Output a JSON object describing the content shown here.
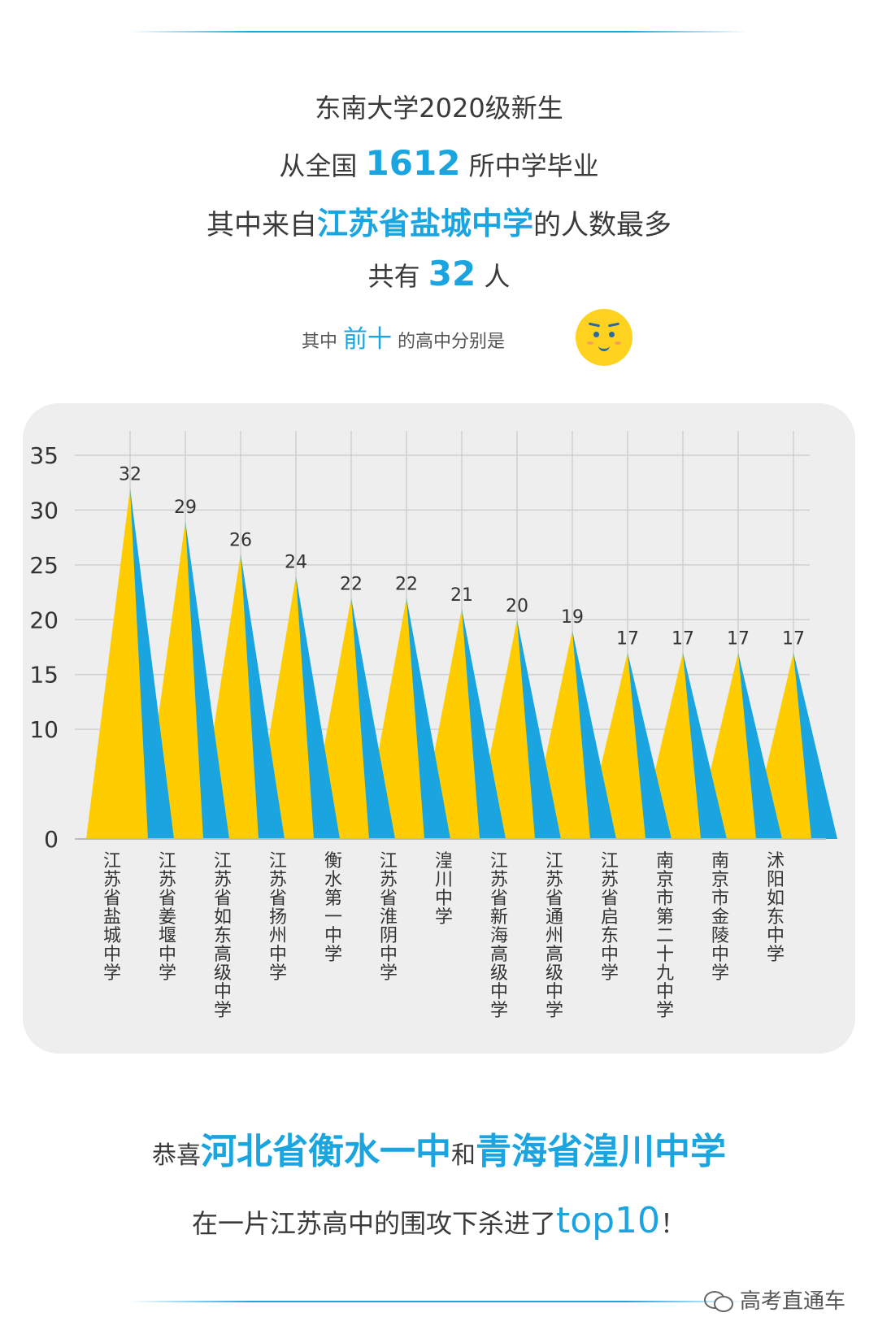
{
  "header": {
    "line1": "东南大学2020级新生",
    "line2_pre": "从全国 ",
    "line2_num": "1612",
    "line2_post": " 所中学毕业",
    "line3_pre": "其中来自",
    "line3_hl": "江苏省盐城中学",
    "line3_post": "的人数最多",
    "line4_pre": "共有 ",
    "line4_num": "32",
    "line4_post": " 人",
    "line5_pre": "其中 ",
    "line5_hl": "前十",
    "line5_post": " 的高中分别是"
  },
  "colors": {
    "accent_blue": "#1aa4e0",
    "accent_yellow": "#ffcc00",
    "panel_bg": "#eeeeee"
  },
  "chart_data": {
    "type": "bar",
    "title": "",
    "xlabel": "",
    "ylabel": "",
    "ylim": [
      0,
      35
    ],
    "yticks": [
      0,
      10,
      15,
      20,
      25,
      30,
      35
    ],
    "grid": true,
    "categories": [
      "江苏省盐城中学",
      "江苏省姜堰中学",
      "江苏省如东高级中学",
      "江苏省扬州中学",
      "衡水第一中学",
      "江苏省淮阴中学",
      "湟川中学",
      "江苏省新海高级中学",
      "江苏省通州高级中学",
      "江苏省启东中学",
      "南京市第二十九中学",
      "南京市金陵中学",
      "沭阳如东中学"
    ],
    "values": [
      32,
      29,
      26,
      24,
      22,
      22,
      21,
      20,
      19,
      17,
      17,
      17,
      17
    ]
  },
  "footer": {
    "line1_pre": "恭喜",
    "line1_hl1": "河北省衡水一中",
    "line1_mid": "和",
    "line1_hl2": "青海省湟川中学",
    "line2_pre": "在一片江苏高中的围攻下杀进了",
    "line2_hl": "top10",
    "line2_post": "！",
    "watermark": "高考直通车",
    "wechat_icon": "wechat-icon"
  }
}
